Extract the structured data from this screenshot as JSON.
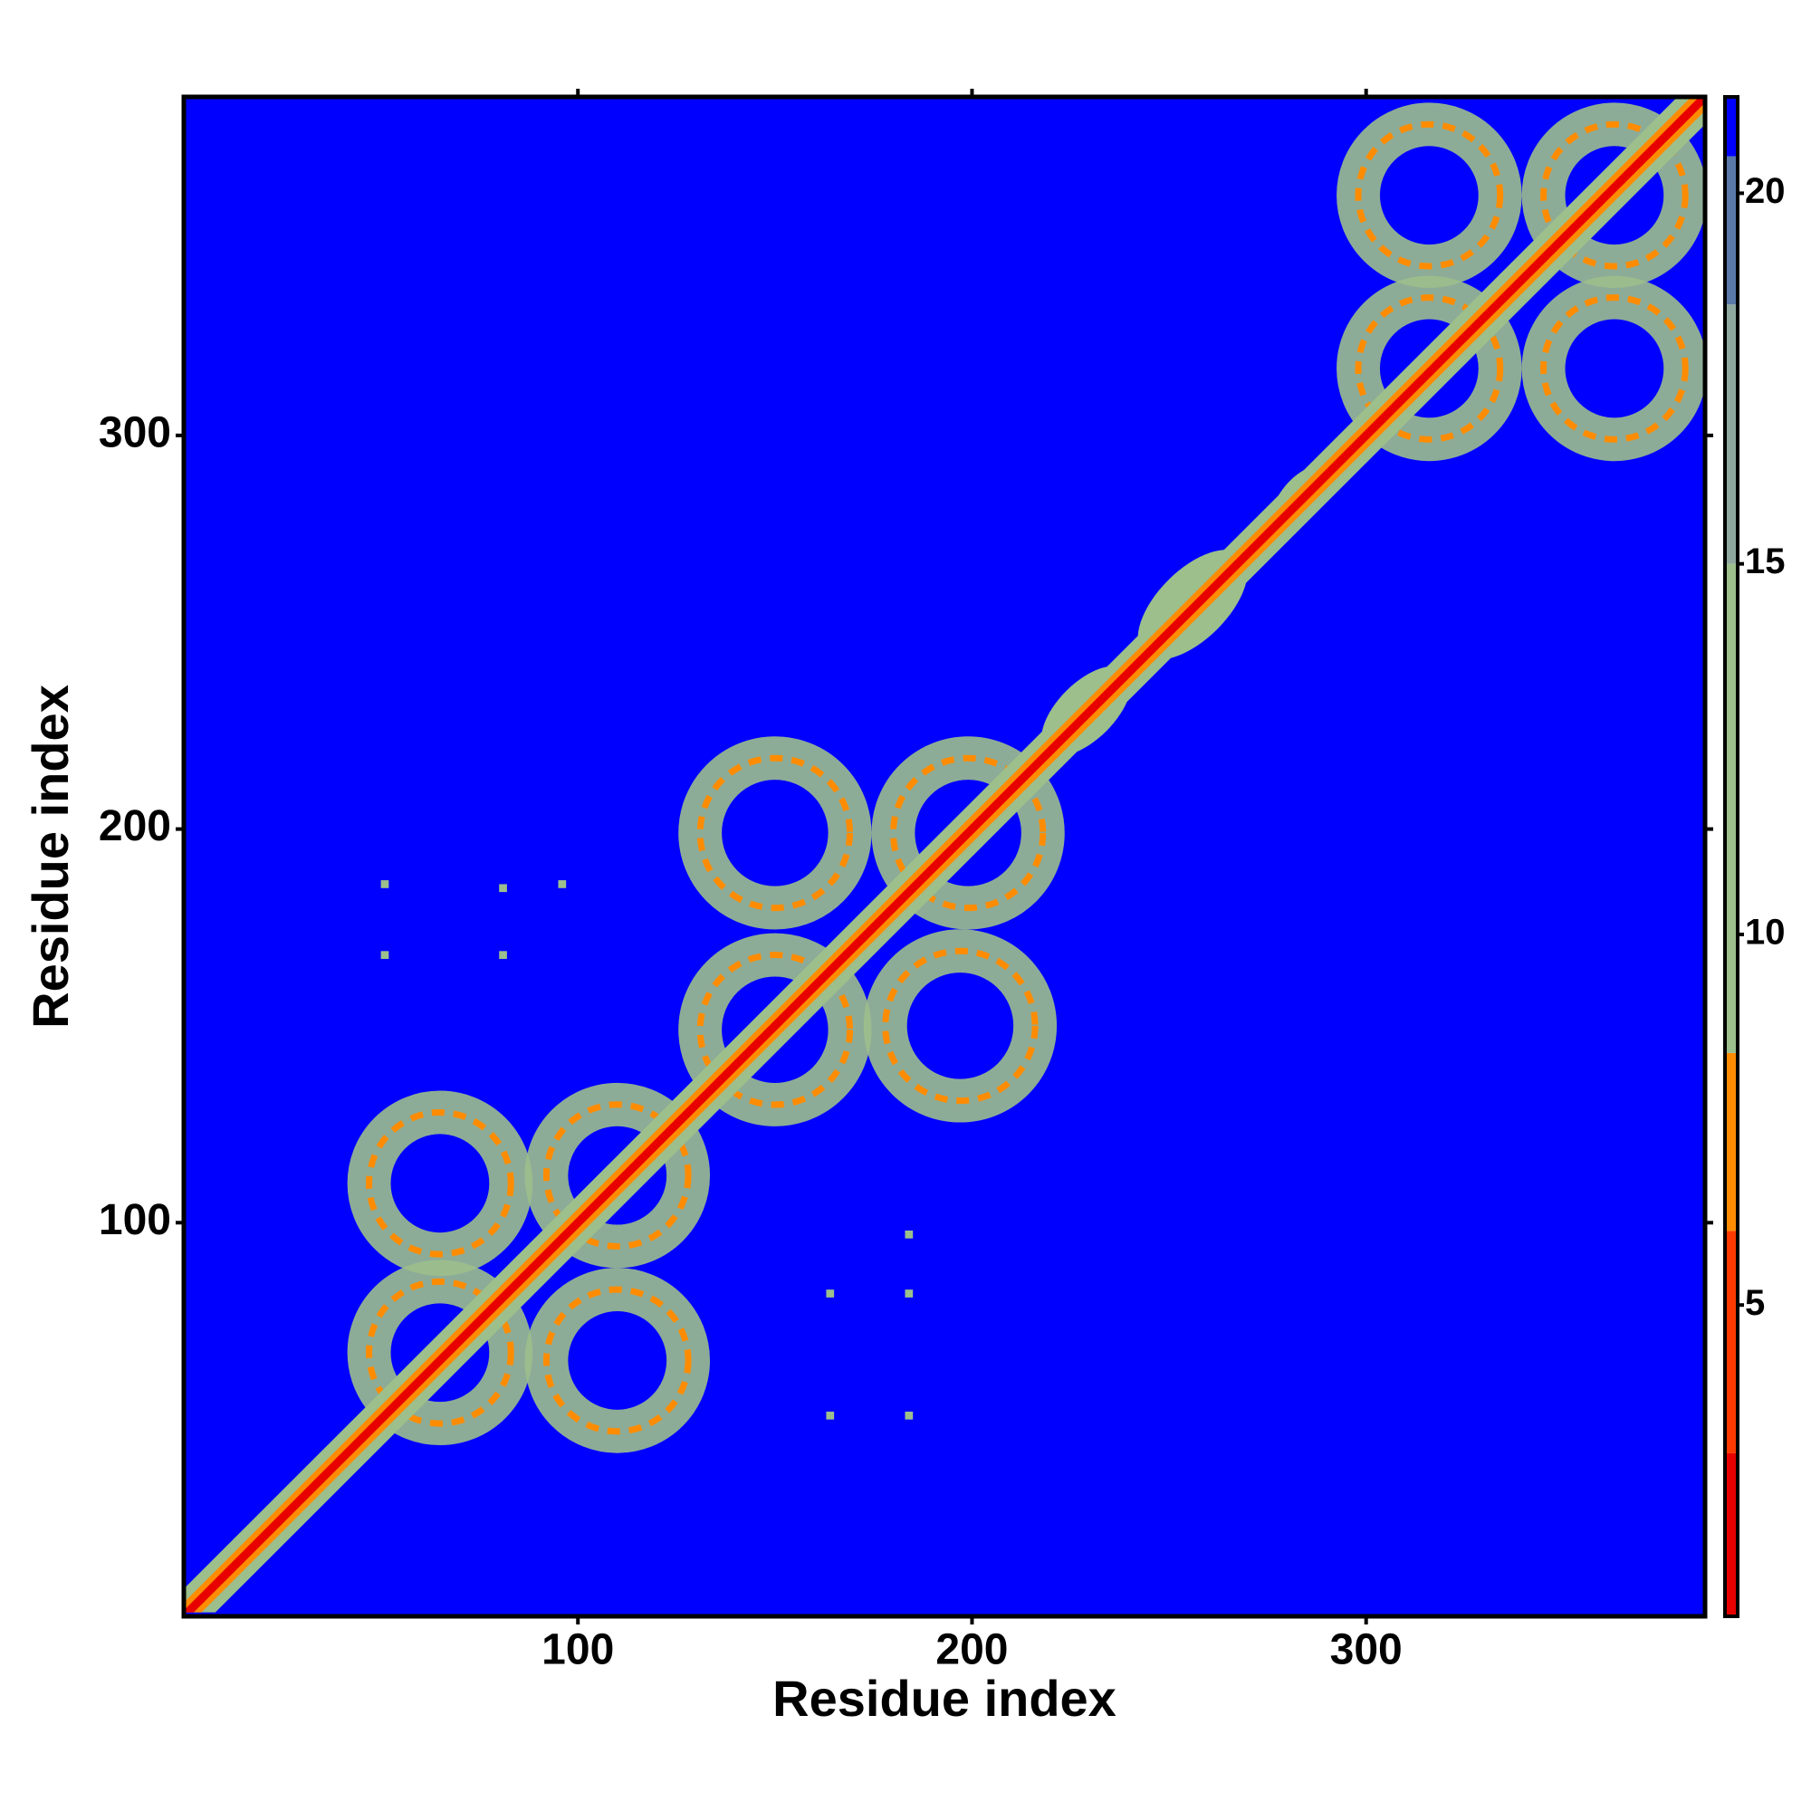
{
  "chart_data": {
    "type": "contact_map",
    "x_label": "Residue index",
    "y_label": "Residue index",
    "xlim": [
      0,
      386
    ],
    "ylim": [
      0,
      386
    ],
    "xticks": [
      100,
      200,
      300
    ],
    "yticks": [
      100,
      200,
      300
    ],
    "background_color": "#0000ff",
    "clim": [
      0.8,
      21.3
    ],
    "cticks": [
      5,
      10,
      15,
      20
    ],
    "colormap": [
      {
        "value": 0.8,
        "color": "#e80000"
      },
      {
        "value": 3,
        "color": "#ff3a00"
      },
      {
        "value": 6,
        "color": "#ff8c00"
      },
      {
        "value": 8.4,
        "color": "#9cbf8c"
      },
      {
        "value": 15,
        "color": "#8ea8a0"
      },
      {
        "value": 18.5,
        "color": "#5a78a8"
      },
      {
        "value": 20.5,
        "color": "#0000ff"
      }
    ],
    "diagonal": {
      "start": 1,
      "end": 386,
      "layers": [
        {
          "halfwidth": 7,
          "value": 12
        },
        {
          "halfwidth": 3.5,
          "value": 7
        },
        {
          "halfwidth": 1.5,
          "value": 1
        }
      ]
    },
    "ring_values": [
      12,
      7
    ],
    "lobes": [
      {
        "x": 65,
        "y": 67,
        "r": 18
      },
      {
        "x": 110,
        "y": 112,
        "r": 18
      },
      {
        "x": 65,
        "y": 110,
        "r": 18
      },
      {
        "x": 110,
        "y": 65,
        "r": 18
      },
      {
        "x": 150,
        "y": 199,
        "r": 19
      },
      {
        "x": 199,
        "y": 199,
        "r": 19
      },
      {
        "x": 150,
        "y": 149,
        "r": 19
      },
      {
        "x": 197,
        "y": 150,
        "r": 19
      },
      {
        "x": 316,
        "y": 361,
        "r": 18
      },
      {
        "x": 363,
        "y": 361,
        "r": 18
      },
      {
        "x": 316,
        "y": 317,
        "r": 18
      },
      {
        "x": 363,
        "y": 317,
        "r": 18
      }
    ],
    "blobs": [
      {
        "x": 229,
        "y": 230,
        "r": 9,
        "value": 12
      },
      {
        "x": 256,
        "y": 257,
        "r": 11,
        "value": 12
      },
      {
        "x": 284,
        "y": 285,
        "r": 6,
        "value": 12
      }
    ],
    "points": [
      {
        "x": 51,
        "y": 186
      },
      {
        "x": 51,
        "y": 168
      },
      {
        "x": 81,
        "y": 185
      },
      {
        "x": 96,
        "y": 186
      },
      {
        "x": 81,
        "y": 168
      },
      {
        "x": 184,
        "y": 97
      },
      {
        "x": 164,
        "y": 82
      },
      {
        "x": 184,
        "y": 82
      },
      {
        "x": 164,
        "y": 51
      },
      {
        "x": 184,
        "y": 51
      }
    ],
    "point_value": 12
  }
}
